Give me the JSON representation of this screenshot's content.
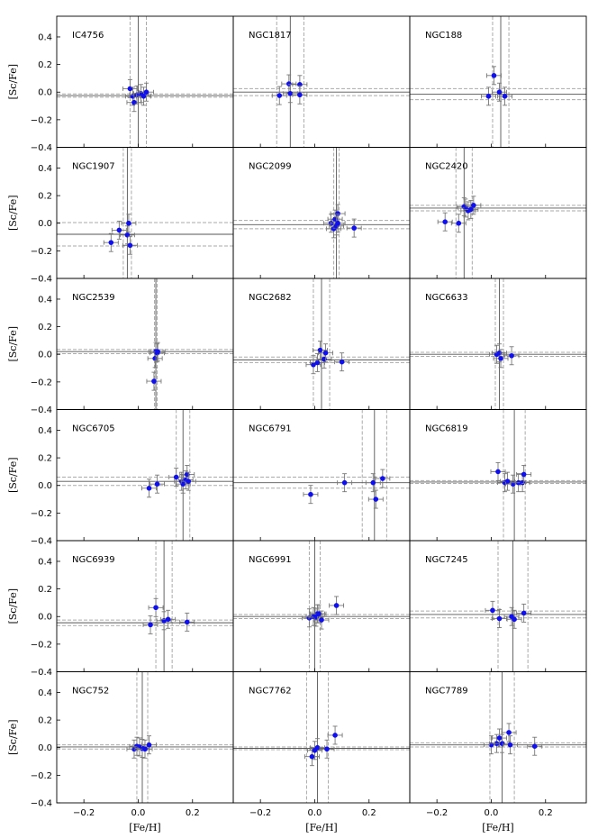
{
  "chart_data": {
    "type": "scatter",
    "x_label": "[Fe/H]",
    "y_label": "[Sc/Fe]",
    "xlim": [
      -0.3,
      0.35
    ],
    "ylim": [
      -0.4,
      0.55
    ],
    "x_ticks": [
      -0.2,
      0.0,
      0.2
    ],
    "x_tick_labels": [
      "−0.2",
      "0.0",
      "0.2"
    ],
    "y_ticks": [
      -0.4,
      -0.2,
      0.0,
      0.2,
      0.4
    ],
    "y_tick_labels": [
      "−0.4",
      "−0.2",
      "0.0",
      "0.2",
      "0.4"
    ],
    "colors": {
      "point": "#1010ee",
      "error": "#777777",
      "mean": "#555555",
      "band": "#aaaaaa"
    },
    "panels": [
      {
        "name": "IC4756",
        "mean_x": 0.0,
        "sd_x": 0.03,
        "mean_y": -0.025,
        "sd_y": 0.012,
        "points": [
          [
            -0.03,
            0.025
          ],
          [
            -0.02,
            -0.03
          ],
          [
            -0.015,
            -0.075
          ],
          [
            -0.005,
            -0.02
          ],
          [
            0.01,
            -0.01
          ],
          [
            0.02,
            -0.03
          ],
          [
            0.03,
            0.0
          ]
        ]
      },
      {
        "name": "NGC1817",
        "mean_x": -0.09,
        "sd_x": 0.05,
        "mean_y": 0.0,
        "sd_y": 0.025,
        "points": [
          [
            -0.13,
            -0.025
          ],
          [
            -0.095,
            0.06
          ],
          [
            -0.09,
            -0.01
          ],
          [
            -0.055,
            0.055
          ],
          [
            -0.055,
            -0.02
          ]
        ]
      },
      {
        "name": "NGC188",
        "mean_x": 0.035,
        "sd_x": 0.03,
        "mean_y": -0.015,
        "sd_y": 0.04,
        "points": [
          [
            -0.01,
            -0.03
          ],
          [
            0.01,
            0.12
          ],
          [
            0.03,
            0.0
          ],
          [
            0.05,
            -0.03
          ]
        ]
      },
      {
        "name": "NGC1907",
        "mean_x": -0.04,
        "sd_x": 0.015,
        "mean_y": -0.08,
        "sd_y": 0.085,
        "points": [
          [
            -0.1,
            -0.14
          ],
          [
            -0.07,
            -0.05
          ],
          [
            -0.04,
            -0.085
          ],
          [
            -0.035,
            0.0
          ],
          [
            -0.03,
            -0.16
          ]
        ]
      },
      {
        "name": "NGC2099",
        "mean_x": 0.08,
        "sd_x": 0.01,
        "mean_y": -0.01,
        "sd_y": 0.03,
        "points": [
          [
            0.06,
            0.0
          ],
          [
            0.07,
            -0.04
          ],
          [
            0.075,
            0.03
          ],
          [
            0.08,
            -0.02
          ],
          [
            0.085,
            0.07
          ],
          [
            0.085,
            0.0
          ],
          [
            0.145,
            -0.035
          ]
        ]
      },
      {
        "name": "NGC2420",
        "mean_x": -0.1,
        "sd_x": 0.03,
        "mean_y": 0.11,
        "sd_y": 0.02,
        "points": [
          [
            -0.17,
            0.01
          ],
          [
            -0.12,
            0.0
          ],
          [
            -0.1,
            0.12
          ],
          [
            -0.095,
            0.11
          ],
          [
            -0.085,
            0.09
          ],
          [
            -0.075,
            0.1
          ],
          [
            -0.065,
            0.13
          ]
        ]
      },
      {
        "name": "NGC2539",
        "mean_x": 0.065,
        "sd_x": 0.005,
        "mean_y": 0.02,
        "sd_y": 0.015,
        "points": [
          [
            0.058,
            -0.195
          ],
          [
            0.062,
            -0.03
          ],
          [
            0.065,
            0.02
          ],
          [
            0.07,
            0.01
          ],
          [
            0.072,
            0.02
          ]
        ]
      },
      {
        "name": "NGC2682",
        "mean_x": 0.025,
        "sd_x": 0.03,
        "mean_y": -0.04,
        "sd_y": 0.02,
        "points": [
          [
            -0.005,
            -0.075
          ],
          [
            0.01,
            -0.06
          ],
          [
            0.02,
            0.03
          ],
          [
            0.035,
            -0.035
          ],
          [
            0.04,
            0.01
          ],
          [
            0.1,
            -0.055
          ]
        ]
      },
      {
        "name": "NGC6633",
        "mean_x": 0.03,
        "sd_x": 0.015,
        "mean_y": 0.0,
        "sd_y": 0.015,
        "points": [
          [
            0.02,
            0.0
          ],
          [
            0.03,
            0.01
          ],
          [
            0.035,
            -0.03
          ],
          [
            0.075,
            -0.01
          ]
        ]
      },
      {
        "name": "NGC6705",
        "mean_x": 0.165,
        "sd_x": 0.025,
        "mean_y": 0.03,
        "sd_y": 0.03,
        "points": [
          [
            0.04,
            -0.02
          ],
          [
            0.07,
            0.01
          ],
          [
            0.14,
            0.06
          ],
          [
            0.16,
            0.03
          ],
          [
            0.165,
            0.01
          ],
          [
            0.175,
            0.04
          ],
          [
            0.18,
            0.08
          ],
          [
            0.185,
            0.03
          ]
        ]
      },
      {
        "name": "NGC6791",
        "mean_x": 0.22,
        "sd_x": 0.045,
        "mean_y": 0.02,
        "sd_y": 0.04,
        "points": [
          [
            -0.015,
            -0.065
          ],
          [
            0.11,
            0.02
          ],
          [
            0.215,
            0.02
          ],
          [
            0.225,
            -0.1
          ],
          [
            0.25,
            0.05
          ]
        ]
      },
      {
        "name": "NGC6819",
        "mean_x": 0.085,
        "sd_x": 0.04,
        "mean_y": 0.025,
        "sd_y": 0.01,
        "points": [
          [
            0.025,
            0.1
          ],
          [
            0.05,
            0.02
          ],
          [
            0.06,
            0.03
          ],
          [
            0.08,
            0.01
          ],
          [
            0.1,
            0.02
          ],
          [
            0.115,
            0.02
          ],
          [
            0.12,
            0.08
          ]
        ]
      },
      {
        "name": "NGC6939",
        "mean_x": 0.095,
        "sd_x": 0.03,
        "mean_y": -0.045,
        "sd_y": 0.02,
        "points": [
          [
            0.045,
            -0.06
          ],
          [
            0.065,
            0.065
          ],
          [
            0.095,
            -0.03
          ],
          [
            0.11,
            -0.02
          ],
          [
            0.18,
            -0.04
          ]
        ]
      },
      {
        "name": "NGC6991",
        "mean_x": 0.0,
        "sd_x": 0.02,
        "mean_y": 0.0,
        "sd_y": 0.015,
        "points": [
          [
            -0.02,
            -0.01
          ],
          [
            -0.005,
            0.0
          ],
          [
            0.005,
            -0.005
          ],
          [
            0.01,
            0.02
          ],
          [
            0.015,
            0.02
          ],
          [
            0.025,
            -0.025
          ],
          [
            0.08,
            0.08
          ]
        ]
      },
      {
        "name": "NGC7245",
        "mean_x": 0.08,
        "sd_x": 0.055,
        "mean_y": 0.015,
        "sd_y": 0.025,
        "points": [
          [
            0.005,
            0.045
          ],
          [
            0.03,
            -0.015
          ],
          [
            0.075,
            0.0
          ],
          [
            0.085,
            -0.02
          ],
          [
            0.12,
            0.025
          ]
        ]
      },
      {
        "name": "NGC752",
        "mean_x": 0.015,
        "sd_x": 0.02,
        "mean_y": 0.005,
        "sd_y": 0.015,
        "points": [
          [
            -0.015,
            -0.01
          ],
          [
            -0.005,
            0.01
          ],
          [
            0.005,
            0.005
          ],
          [
            0.015,
            -0.005
          ],
          [
            0.025,
            -0.01
          ],
          [
            0.04,
            0.02
          ]
        ]
      },
      {
        "name": "NGC7762",
        "mean_x": 0.01,
        "sd_x": 0.04,
        "mean_y": -0.005,
        "sd_y": 0.01,
        "points": [
          [
            -0.01,
            -0.065
          ],
          [
            0.0,
            -0.02
          ],
          [
            0.01,
            0.0
          ],
          [
            0.045,
            -0.01
          ],
          [
            0.075,
            0.09
          ]
        ]
      },
      {
        "name": "NGC7789",
        "mean_x": 0.04,
        "sd_x": 0.045,
        "mean_y": 0.02,
        "sd_y": 0.015,
        "points": [
          [
            0.0,
            0.02
          ],
          [
            0.02,
            0.03
          ],
          [
            0.03,
            0.07
          ],
          [
            0.04,
            0.03
          ],
          [
            0.065,
            0.11
          ],
          [
            0.07,
            0.02
          ],
          [
            0.16,
            0.01
          ]
        ]
      }
    ]
  }
}
